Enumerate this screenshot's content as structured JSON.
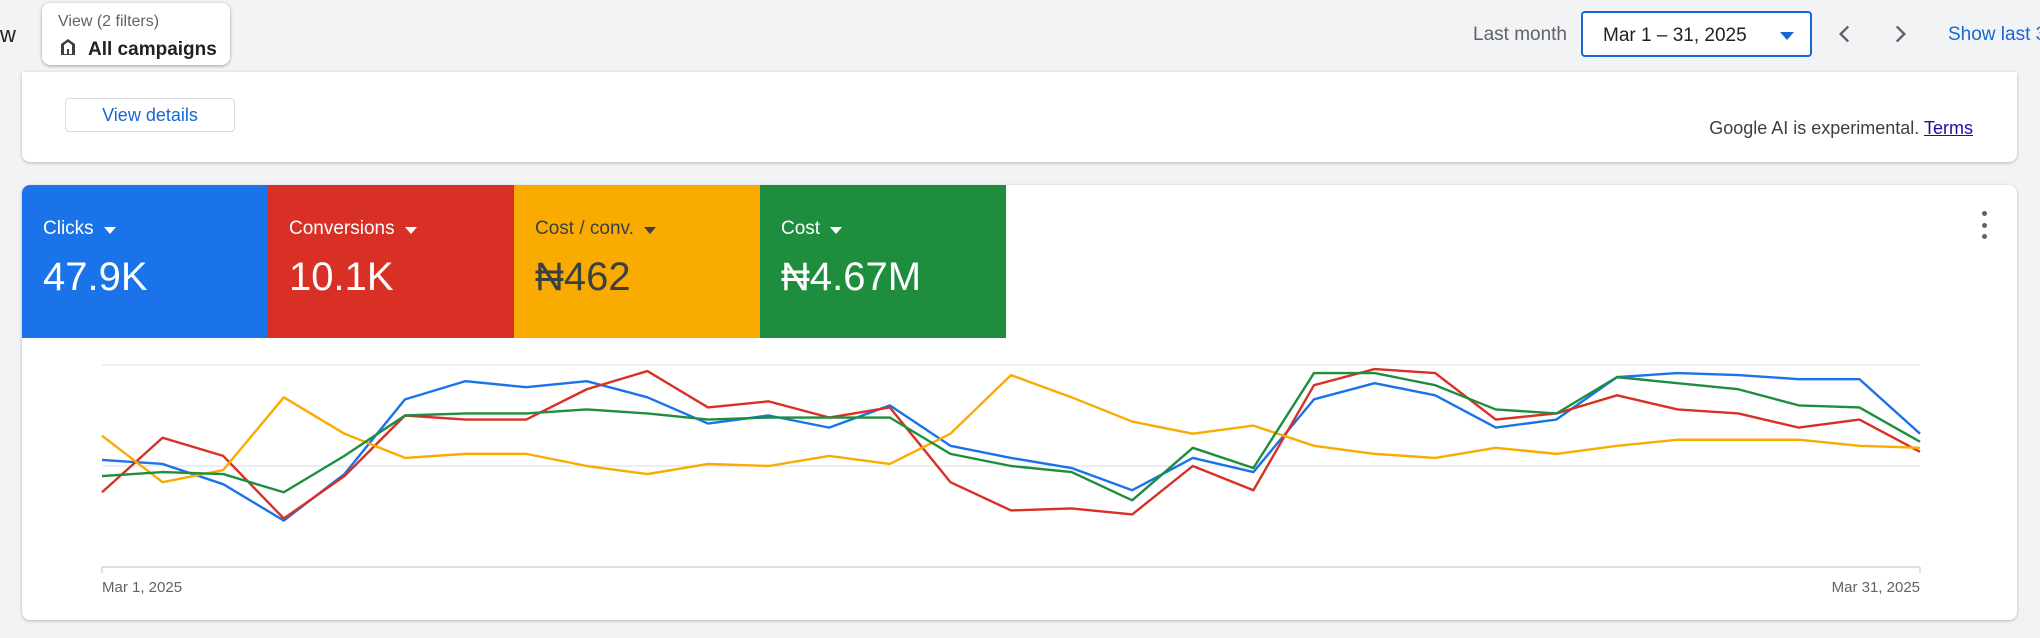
{
  "header": {
    "partial_text": "w",
    "filter": {
      "sublabel": "View (2 filters)",
      "label": "All campaigns",
      "icon": "building-icon"
    },
    "period_label": "Last month",
    "date_range": "Mar 1 – 31, 2025",
    "show_last_label": "Show last 3"
  },
  "ai_card": {
    "view_details_label": "View details",
    "disclaimer": "Google AI is experimental.",
    "terms_link": "Terms"
  },
  "metrics": [
    {
      "label": "Clicks",
      "value": "47.9K",
      "color": "#1a73e8"
    },
    {
      "label": "Conversions",
      "value": "10.1K",
      "color": "#d93025"
    },
    {
      "label": "Cost / conv.",
      "value": "₦462",
      "color": "#f9ab00"
    },
    {
      "label": "Cost",
      "value": "₦4.67M",
      "color": "#1e8e3e"
    }
  ],
  "chart_data": {
    "type": "line",
    "x_start_label": "Mar 1, 2025",
    "x_end_label": "Mar 31, 2025",
    "x": [
      1,
      2,
      3,
      4,
      5,
      6,
      7,
      8,
      9,
      10,
      11,
      12,
      13,
      14,
      15,
      16,
      17,
      18,
      19,
      20,
      21,
      22,
      23,
      24,
      25,
      26,
      27,
      28,
      29,
      30,
      31
    ],
    "normalized_scale": [
      0,
      100
    ],
    "grid": true,
    "series": [
      {
        "name": "Clicks",
        "color": "#1a73e8",
        "values": [
          53,
          51,
          41,
          23,
          46,
          83,
          92,
          89,
          92,
          84,
          71,
          75,
          69,
          80,
          60,
          54,
          49,
          38,
          54,
          47,
          83,
          91,
          85,
          69,
          73,
          94,
          96,
          95,
          93,
          93,
          66
        ]
      },
      {
        "name": "Conversions",
        "color": "#d93025",
        "values": [
          37,
          64,
          55,
          24,
          45,
          75,
          73,
          73,
          88,
          97,
          79,
          82,
          74,
          79,
          42,
          28,
          29,
          26,
          50,
          38,
          90,
          98,
          96,
          73,
          76,
          85,
          78,
          76,
          69,
          73,
          57
        ]
      },
      {
        "name": "Cost / conv.",
        "color": "#f9ab00",
        "values": [
          65,
          42,
          48,
          84,
          66,
          54,
          56,
          56,
          50,
          46,
          51,
          50,
          55,
          51,
          66,
          95,
          84,
          72,
          66,
          70,
          60,
          56,
          54,
          59,
          56,
          60,
          63,
          63,
          63,
          60,
          59
        ]
      },
      {
        "name": "Cost",
        "color": "#1e8e3e",
        "values": [
          45,
          47,
          46,
          37,
          55,
          75,
          76,
          76,
          78,
          76,
          73,
          74,
          74,
          74,
          56,
          50,
          47,
          33,
          59,
          49,
          96,
          96,
          90,
          78,
          76,
          94,
          91,
          88,
          80,
          79,
          62
        ]
      }
    ]
  }
}
